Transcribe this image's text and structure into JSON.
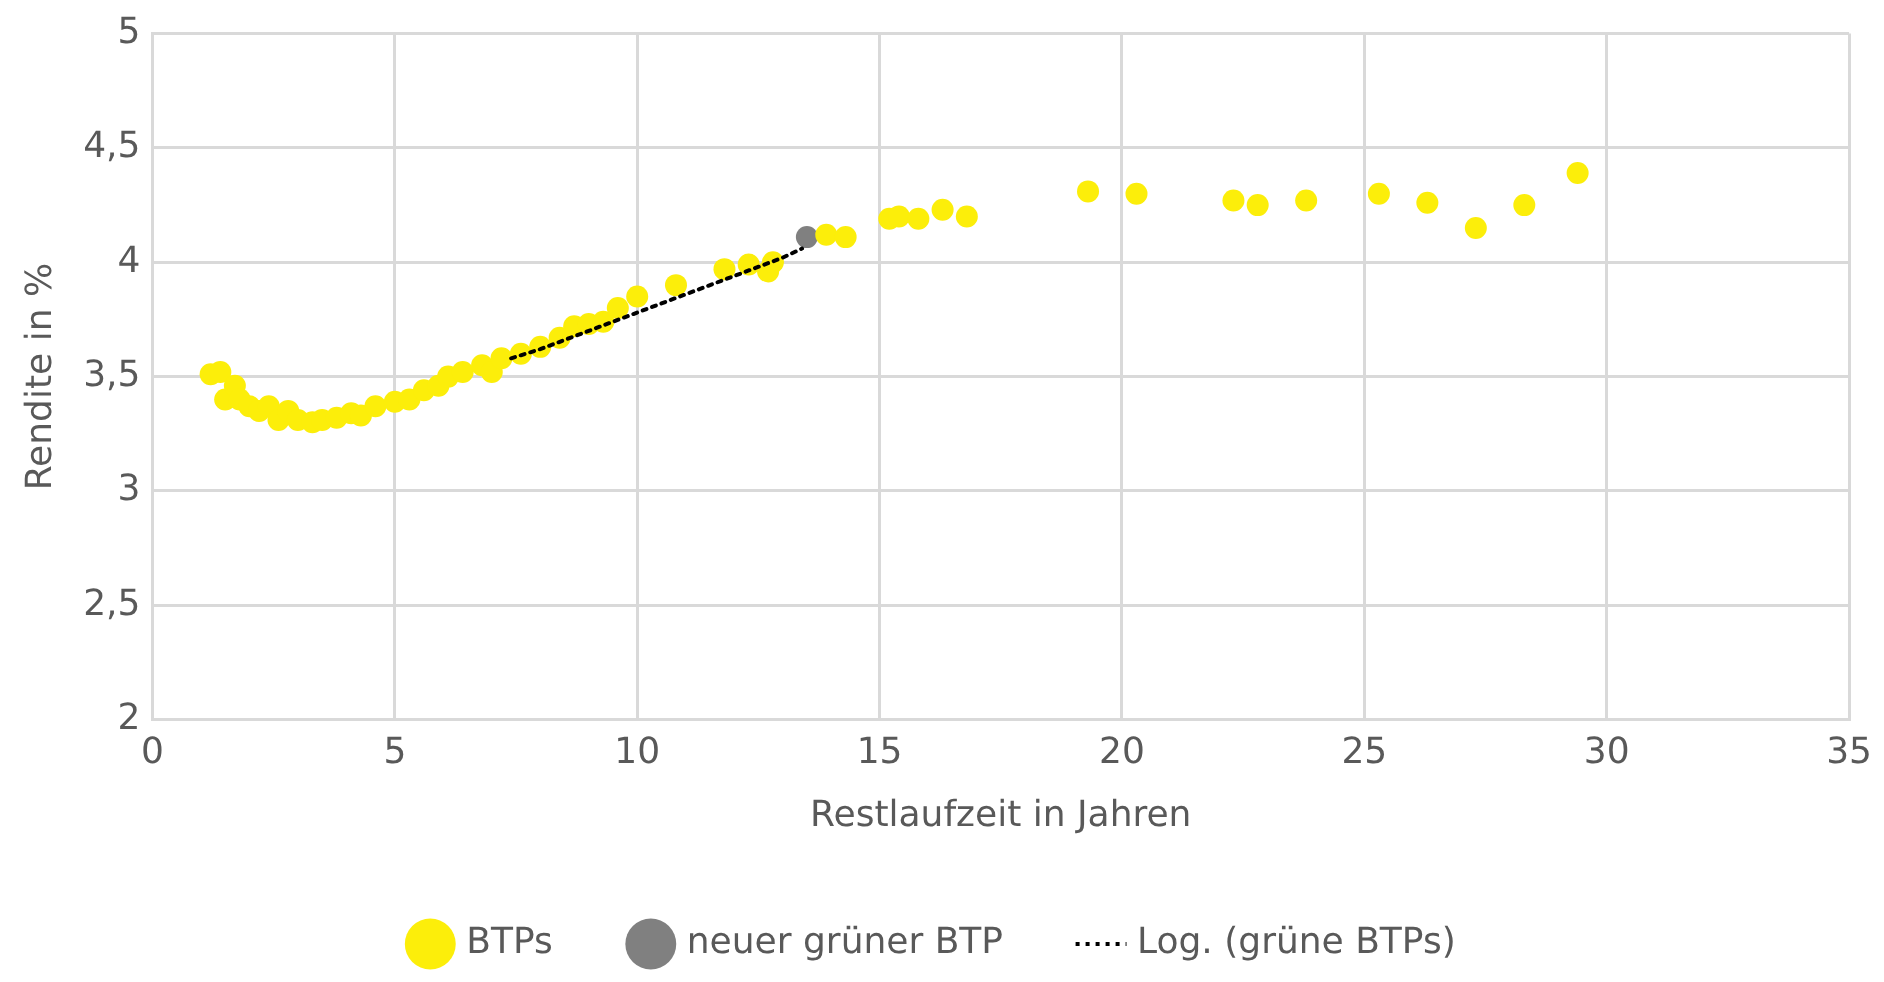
{
  "chart_data": {
    "type": "scatter",
    "xlabel": "Restlaufzeit in Jahren",
    "ylabel": "Rendite in %",
    "xlim": [
      0,
      35
    ],
    "xticks": [
      0,
      5,
      10,
      15,
      20,
      25,
      30,
      35
    ],
    "ylim": [
      2,
      5
    ],
    "yticks": [
      2,
      {
        "value": 2.5,
        "label": "2,5"
      },
      3,
      {
        "value": 3.5,
        "label": "3,5"
      },
      4,
      {
        "value": 4.5,
        "label": "4,5"
      },
      5
    ],
    "grid": true,
    "legend": "bottom",
    "marker": "circle",
    "series": [
      {
        "name": "BTPs",
        "color": "#fcee0a",
        "x": [
          1.2,
          1.4,
          1.5,
          1.7,
          1.8,
          2.0,
          2.2,
          2.4,
          2.6,
          2.8,
          3.0,
          3.3,
          3.5,
          3.8,
          4.1,
          4.3,
          4.6,
          5.0,
          5.3,
          5.6,
          5.9,
          6.1,
          6.4,
          6.8,
          7.0,
          7.2,
          7.6,
          8.0,
          8.4,
          8.7,
          9.0,
          9.3,
          9.6,
          10.0,
          10.8,
          11.8,
          12.3,
          12.7,
          12.8,
          13.9,
          14.3,
          15.2,
          15.4,
          15.8,
          16.3,
          16.8,
          19.3,
          20.3,
          22.3,
          22.8,
          23.8,
          25.3,
          26.3,
          27.3,
          28.3,
          29.4
        ],
        "values": [
          3.51,
          3.52,
          3.4,
          3.46,
          3.4,
          3.37,
          3.35,
          3.37,
          3.31,
          3.35,
          3.31,
          3.3,
          3.31,
          3.32,
          3.34,
          3.33,
          3.37,
          3.39,
          3.4,
          3.44,
          3.46,
          3.5,
          3.52,
          3.55,
          3.52,
          3.58,
          3.6,
          3.63,
          3.67,
          3.72,
          3.73,
          3.74,
          3.8,
          3.85,
          3.9,
          3.97,
          3.99,
          3.96,
          4.0,
          4.12,
          4.11,
          4.19,
          4.2,
          4.19,
          4.23,
          4.2,
          4.31,
          4.3,
          4.27,
          4.25,
          4.27,
          4.3,
          4.26,
          4.15,
          4.25,
          4.39
        ]
      },
      {
        "name": "neuer grüner BTP",
        "color": "#808080",
        "x": [
          13.5
        ],
        "values": [
          4.11
        ]
      },
      {
        "name": "Log. (grüne BTPs)",
        "type": "line",
        "color": "#000000",
        "line_style": "dotted",
        "marker": "none",
        "x": [
          7.4,
          8,
          9,
          10,
          11,
          12,
          13,
          13.4
        ],
        "values": [
          3.58,
          3.62,
          3.7,
          3.78,
          3.86,
          3.94,
          4.02,
          4.06
        ]
      }
    ]
  }
}
